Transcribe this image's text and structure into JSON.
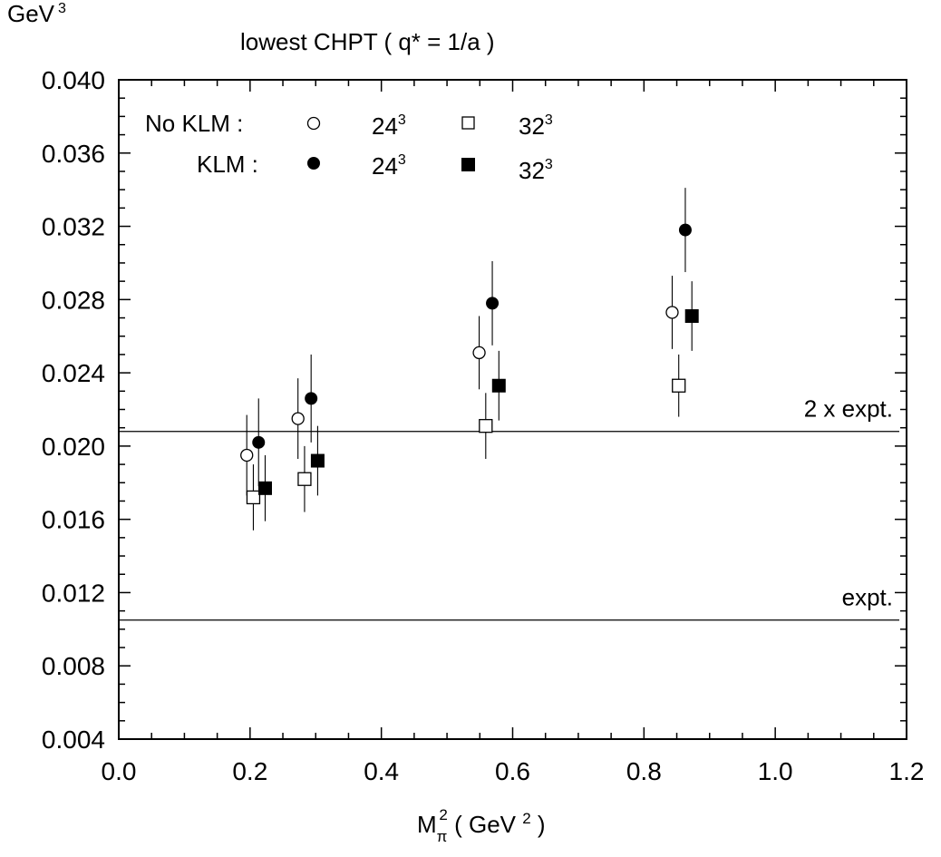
{
  "chart_data": {
    "type": "scatter",
    "title": "lowest CHPT ( q* = 1/a )",
    "ylabel": "GeV",
    "ylabel_sup": "3",
    "xlabel": {
      "base": "M",
      "sub": "π",
      "sup": "2",
      "paren_open": " ( GeV ",
      "unit_sup": "2",
      "paren_close": " )"
    },
    "xlim": [
      0.0,
      1.2
    ],
    "ylim": [
      0.004,
      0.04
    ],
    "x_ticks": [
      "0.0",
      "0.2",
      "0.4",
      "0.6",
      "0.8",
      "1.0",
      "1.2"
    ],
    "y_ticks": [
      "0.004",
      "0.008",
      "0.012",
      "0.016",
      "0.020",
      "0.024",
      "0.028",
      "0.032",
      "0.036",
      "0.040"
    ],
    "grid": false,
    "legend": {
      "placement": "top-left",
      "rows": [
        {
          "label": "No KLM :",
          "items": [
            {
              "marker": "open-circle",
              "text": "24",
              "sup": "3"
            },
            {
              "marker": "open-square",
              "text": "32",
              "sup": "3"
            }
          ]
        },
        {
          "label": "KLM :",
          "items": [
            {
              "marker": "filled-circle",
              "text": "24",
              "sup": "3"
            },
            {
              "marker": "filled-square",
              "text": "32",
              "sup": "3"
            }
          ]
        }
      ]
    },
    "series": [
      {
        "marker": "open-circle",
        "points": [
          {
            "x": 0.195,
            "y": 0.0195,
            "err": 0.0022
          },
          {
            "x": 0.273,
            "y": 0.0215,
            "err": 0.0022
          },
          {
            "x": 0.549,
            "y": 0.0251,
            "err": 0.002
          },
          {
            "x": 0.843,
            "y": 0.0273,
            "err": 0.002
          }
        ]
      },
      {
        "marker": "open-square",
        "points": [
          {
            "x": 0.205,
            "y": 0.0172,
            "err": 0.0018
          },
          {
            "x": 0.283,
            "y": 0.0182,
            "err": 0.0018
          },
          {
            "x": 0.559,
            "y": 0.0211,
            "err": 0.0018
          },
          {
            "x": 0.853,
            "y": 0.0233,
            "err": 0.0017
          }
        ]
      },
      {
        "marker": "filled-circle",
        "points": [
          {
            "x": 0.213,
            "y": 0.0202,
            "err": 0.0024
          },
          {
            "x": 0.293,
            "y": 0.0226,
            "err": 0.0024
          },
          {
            "x": 0.569,
            "y": 0.0278,
            "err": 0.0023
          },
          {
            "x": 0.863,
            "y": 0.0318,
            "err": 0.0023
          }
        ]
      },
      {
        "marker": "filled-square",
        "points": [
          {
            "x": 0.223,
            "y": 0.0177,
            "err": 0.0018
          },
          {
            "x": 0.303,
            "y": 0.0192,
            "err": 0.0019
          },
          {
            "x": 0.579,
            "y": 0.0233,
            "err": 0.0019
          },
          {
            "x": 0.873,
            "y": 0.0271,
            "err": 0.0019
          }
        ]
      }
    ],
    "reference_lines": [
      {
        "y": 0.0208,
        "label": "2 x expt."
      },
      {
        "y": 0.0105,
        "label": "expt."
      }
    ]
  }
}
